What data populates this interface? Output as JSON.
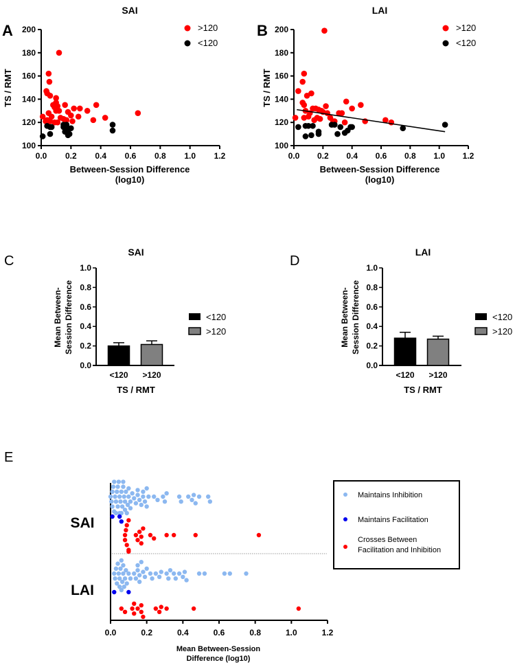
{
  "colors": {
    "red": "#ff0000",
    "black": "#000000",
    "lightblue": "#8cb8f0",
    "blue": "#0000ee",
    "gray": "#808080"
  },
  "chart_data": [
    {
      "panel": "A",
      "type": "scatter",
      "title": "SAI",
      "xlabel": "Between-Session Difference",
      "xlabel2": "(log10)",
      "ylabel": "TS / RMT",
      "xlim": [
        0,
        1.2
      ],
      "ylim": [
        100,
        200
      ],
      "xticks": [
        "0.0",
        "0.2",
        "0.4",
        "0.6",
        "0.8",
        "1.0",
        "1.2"
      ],
      "yticks": [
        "100",
        "120",
        "140",
        "160",
        "180",
        "200"
      ],
      "legend": [
        ">120",
        "<120"
      ],
      "legend_position": "top-right",
      "series": [
        {
          "name": ">120",
          "color": "#ff0000",
          "points": [
            [
              0.12,
              180
            ],
            [
              0.05,
              162
            ],
            [
              0.055,
              155
            ],
            [
              0.035,
              147
            ],
            [
              0.04,
              145
            ],
            [
              0.06,
              143
            ],
            [
              0.1,
              141
            ],
            [
              0.1,
              137
            ],
            [
              0.08,
              135
            ],
            [
              0.16,
              135
            ],
            [
              0.37,
              135
            ],
            [
              0.09,
              133
            ],
            [
              0.12,
              130
            ],
            [
              0.22,
              132
            ],
            [
              0.26,
              132
            ],
            [
              0.31,
              130
            ],
            [
              0.05,
              128
            ],
            [
              0.18,
              129
            ],
            [
              0.65,
              128
            ],
            [
              0.01,
              125
            ],
            [
              0.07,
              125
            ],
            [
              0.13,
              124
            ],
            [
              0.2,
              126
            ],
            [
              0.25,
              125
            ],
            [
              0.43,
              124
            ],
            [
              0.03,
              121
            ],
            [
              0.06,
              121
            ],
            [
              0.09,
              120
            ],
            [
              0.11,
              120
            ],
            [
              0.21,
              121
            ],
            [
              0.35,
              122
            ],
            [
              0.15,
              123
            ],
            [
              0.17,
              122
            ],
            [
              0.1,
              130
            ],
            [
              0.11,
              134
            ],
            [
              0.04,
              122
            ]
          ]
        },
        {
          "name": "<120",
          "color": "#000000",
          "points": [
            [
              0.01,
              108
            ],
            [
              0.04,
              117
            ],
            [
              0.06,
              116
            ],
            [
              0.07,
              116
            ],
            [
              0.06,
              110
            ],
            [
              0.15,
              116
            ],
            [
              0.16,
              112
            ],
            [
              0.17,
              118
            ],
            [
              0.18,
              113
            ],
            [
              0.19,
              110
            ],
            [
              0.2,
              115
            ],
            [
              0.17,
              116
            ],
            [
              0.48,
              118
            ],
            [
              0.48,
              113
            ],
            [
              0.15,
              118
            ],
            [
              0.18,
              109
            ]
          ]
        }
      ]
    },
    {
      "panel": "B",
      "type": "scatter",
      "title": "LAI",
      "xlabel": "Between-Session Difference",
      "xlabel2": "(log10)",
      "ylabel": "TS / RMT",
      "xlim": [
        0,
        1.2
      ],
      "ylim": [
        100,
        200
      ],
      "xticks": [
        "0.0",
        "0.2",
        "0.4",
        "0.6",
        "0.8",
        "1.0",
        "1.2"
      ],
      "yticks": [
        "100",
        "120",
        "140",
        "160",
        "180",
        "200"
      ],
      "legend": [
        ">120",
        "<120"
      ],
      "legend_position": "top-right",
      "regression_line": [
        [
          0.02,
          131
        ],
        [
          1.04,
          112
        ]
      ],
      "series": [
        {
          "name": ">120",
          "color": "#ff0000",
          "points": [
            [
              0.21,
              199
            ],
            [
              0.07,
              162
            ],
            [
              0.06,
              155
            ],
            [
              0.03,
              147
            ],
            [
              0.12,
              145
            ],
            [
              0.09,
              143
            ],
            [
              0.06,
              137
            ],
            [
              0.07,
              135
            ],
            [
              0.36,
              138
            ],
            [
              0.46,
              135
            ],
            [
              0.4,
              132
            ],
            [
              0.22,
              134
            ],
            [
              0.13,
              132
            ],
            [
              0.15,
              132
            ],
            [
              0.17,
              131
            ],
            [
              0.19,
              130
            ],
            [
              0.23,
              128
            ],
            [
              0.31,
              128
            ],
            [
              0.33,
              128
            ],
            [
              0.01,
              124
            ],
            [
              0.07,
              124
            ],
            [
              0.1,
              125
            ],
            [
              0.14,
              122
            ],
            [
              0.16,
              124
            ],
            [
              0.18,
              123
            ],
            [
              0.25,
              124
            ],
            [
              0.27,
              121
            ],
            [
              0.28,
              121
            ],
            [
              0.35,
              120
            ],
            [
              0.49,
              121
            ],
            [
              0.63,
              122
            ],
            [
              0.67,
              120
            ],
            [
              0.08,
              130
            ],
            [
              0.11,
              128
            ],
            [
              0.2,
              129
            ]
          ]
        },
        {
          "name": "<120",
          "color": "#000000",
          "points": [
            [
              0.03,
              116
            ],
            [
              0.08,
              117
            ],
            [
              0.1,
              117
            ],
            [
              0.13,
              117
            ],
            [
              0.08,
              108
            ],
            [
              0.12,
              109
            ],
            [
              0.17,
              110
            ],
            [
              0.17,
              112
            ],
            [
              0.26,
              118
            ],
            [
              0.28,
              118
            ],
            [
              0.3,
              110
            ],
            [
              0.32,
              116
            ],
            [
              0.35,
              111
            ],
            [
              0.37,
              113
            ],
            [
              0.39,
              116
            ],
            [
              0.4,
              116
            ],
            [
              0.75,
              115
            ],
            [
              1.04,
              118
            ]
          ]
        }
      ]
    },
    {
      "panel": "C",
      "type": "bar",
      "title": "SAI",
      "categories": [
        "<120",
        ">120"
      ],
      "values": [
        0.2,
        0.215
      ],
      "errors": [
        0.033,
        0.037
      ],
      "colors": [
        "#000000",
        "#808080"
      ],
      "xlabel": "TS / RMT",
      "ylabel": "Mean Between-",
      "ylabel2": "Session Difference",
      "ylim": [
        0,
        1.0
      ],
      "yticks": [
        "0.0",
        "0.2",
        "0.4",
        "0.6",
        "0.8",
        "1.0"
      ],
      "legend": [
        "<120",
        ">120"
      ],
      "legend_position": "right"
    },
    {
      "panel": "D",
      "type": "bar",
      "title": "LAI",
      "categories": [
        "<120",
        ">120"
      ],
      "values": [
        0.28,
        0.27
      ],
      "errors": [
        0.06,
        0.03
      ],
      "colors": [
        "#000000",
        "#808080"
      ],
      "xlabel": "TS / RMT",
      "ylabel": "Mean Between-",
      "ylabel2": "Session Difference",
      "ylim": [
        0,
        1.0
      ],
      "yticks": [
        "0.0",
        "0.2",
        "0.4",
        "0.6",
        "0.8",
        "1.0"
      ],
      "legend": [
        "<120",
        ">120"
      ],
      "legend_position": "right"
    },
    {
      "panel": "E",
      "type": "scatter",
      "subtype": "beeswarm",
      "groups": [
        "SAI",
        "LAI"
      ],
      "xlabel": "Mean Between-Session",
      "xlabel2": "Difference (log10)",
      "xlim": [
        0,
        1.2
      ],
      "xticks": [
        "0.0",
        "0.2",
        "0.4",
        "0.6",
        "0.8",
        "1.0",
        "1.2"
      ],
      "legend": [
        "Maintains Inhibition",
        "Maintains Facilitation",
        "Crosses Between",
        "Facilitation and Inhibition"
      ],
      "legend_position": "right",
      "series": [
        {
          "group": "SAI",
          "name": "Maintains Inhibition",
          "color": "#8cb8f0",
          "values": [
            0.0,
            0.005,
            0.01,
            0.01,
            0.015,
            0.02,
            0.02,
            0.025,
            0.03,
            0.03,
            0.035,
            0.04,
            0.04,
            0.045,
            0.05,
            0.05,
            0.055,
            0.06,
            0.06,
            0.065,
            0.07,
            0.07,
            0.075,
            0.08,
            0.08,
            0.085,
            0.09,
            0.095,
            0.1,
            0.1,
            0.11,
            0.11,
            0.12,
            0.13,
            0.14,
            0.15,
            0.15,
            0.16,
            0.17,
            0.18,
            0.18,
            0.19,
            0.2,
            0.2,
            0.21,
            0.24,
            0.26,
            0.29,
            0.3,
            0.31,
            0.38,
            0.39,
            0.43,
            0.45,
            0.46,
            0.47,
            0.49,
            0.54,
            0.55
          ]
        },
        {
          "group": "SAI",
          "name": "Maintains Facilitation",
          "color": "#0000ee",
          "values": [
            0.01,
            0.05,
            0.06
          ]
        },
        {
          "group": "SAI",
          "name": "Crosses Between Facilitation and Inhibition",
          "color": "#ff0000",
          "values": [
            0.08,
            0.08,
            0.085,
            0.09,
            0.09,
            0.1,
            0.1,
            0.1,
            0.14,
            0.15,
            0.16,
            0.17,
            0.17,
            0.18,
            0.22,
            0.24,
            0.31,
            0.35,
            0.47,
            0.82
          ]
        },
        {
          "group": "LAI",
          "name": "Maintains Inhibition",
          "color": "#8cb8f0",
          "values": [
            0.02,
            0.025,
            0.03,
            0.035,
            0.04,
            0.045,
            0.05,
            0.05,
            0.055,
            0.06,
            0.06,
            0.065,
            0.07,
            0.07,
            0.075,
            0.08,
            0.085,
            0.09,
            0.1,
            0.11,
            0.13,
            0.14,
            0.15,
            0.15,
            0.16,
            0.16,
            0.17,
            0.18,
            0.19,
            0.2,
            0.22,
            0.23,
            0.25,
            0.27,
            0.28,
            0.31,
            0.32,
            0.33,
            0.35,
            0.36,
            0.38,
            0.4,
            0.41,
            0.42,
            0.49,
            0.52,
            0.63,
            0.66,
            0.75
          ]
        },
        {
          "group": "LAI",
          "name": "Maintains Facilitation",
          "color": "#0000ee",
          "values": [
            0.02,
            0.1
          ]
        },
        {
          "group": "LAI",
          "name": "Crosses Between Facilitation and Inhibition",
          "color": "#ff0000",
          "values": [
            0.06,
            0.08,
            0.12,
            0.13,
            0.13,
            0.15,
            0.17,
            0.17,
            0.18,
            0.25,
            0.27,
            0.28,
            0.31,
            0.46,
            1.04
          ]
        }
      ]
    }
  ],
  "panel_letters": [
    "A",
    "B",
    "C",
    "D",
    "E"
  ]
}
